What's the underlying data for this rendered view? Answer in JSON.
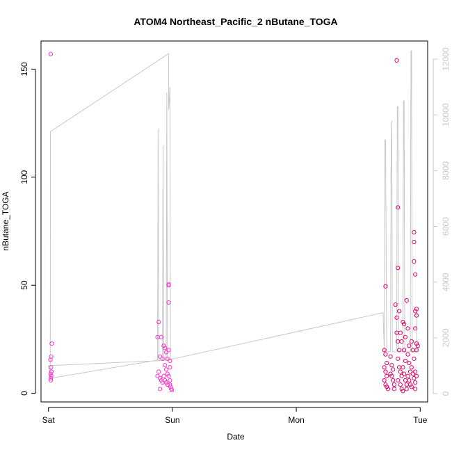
{
  "chart_data": {
    "type": "scatter",
    "title": "ATOM4 Northeast_Pacific_2 nButane_TOGA",
    "xlabel": "Date",
    "ylabel": "nButane_TOGA",
    "x_ticks": [
      {
        "label": "Sat",
        "t": 0
      },
      {
        "label": "Sun",
        "t": 1
      },
      {
        "label": "Mon",
        "t": 2
      },
      {
        "label": "Tue",
        "t": 3
      }
    ],
    "xlim": [
      -0.06,
      3.06
    ],
    "ylim": [
      -4,
      163
    ],
    "y_ticks": [
      0,
      50,
      100,
      150
    ],
    "y2lim": [
      -300,
      12650
    ],
    "y2_ticks": [
      0,
      2000,
      4000,
      6000,
      8000,
      10000,
      12000
    ],
    "grid": false,
    "colors": {
      "series_dark": "#e0006a",
      "series_light": "#ff33cc",
      "altitude_line": "#c8c8c8"
    },
    "series": [
      {
        "axis": "left",
        "style": "points",
        "points": [
          [
            0.018,
            157
          ],
          [
            0.026,
            23
          ],
          [
            0.022,
            17
          ],
          [
            0.016,
            15.5
          ],
          [
            0.02,
            12
          ],
          [
            0.024,
            10
          ],
          [
            0.018,
            9
          ],
          [
            0.022,
            8
          ],
          [
            0.02,
            7
          ],
          [
            0.019,
            6
          ],
          [
            0.88,
            26
          ],
          [
            0.89,
            33
          ],
          [
            0.9,
            17
          ],
          [
            0.91,
            26
          ],
          [
            0.92,
            16
          ],
          [
            0.89,
            10
          ],
          [
            0.88,
            8
          ],
          [
            0.9,
            7
          ],
          [
            0.91,
            6
          ],
          [
            0.92,
            5
          ],
          [
            0.9,
            2
          ],
          [
            0.93,
            22
          ],
          [
            0.94,
            21
          ],
          [
            0.95,
            19
          ],
          [
            0.96,
            16
          ],
          [
            0.94,
            13
          ],
          [
            0.95,
            11
          ],
          [
            0.96,
            9
          ],
          [
            0.93,
            8
          ],
          [
            0.94,
            6
          ],
          [
            0.95,
            5
          ],
          [
            0.96,
            4
          ],
          [
            0.97,
            50.5
          ],
          [
            0.97,
            50
          ],
          [
            0.97,
            42
          ],
          [
            0.97,
            20
          ],
          [
            0.98,
            15
          ],
          [
            0.98,
            12
          ],
          [
            0.97,
            8
          ],
          [
            0.98,
            6
          ],
          [
            0.98,
            4
          ],
          [
            0.985,
            3
          ],
          [
            0.99,
            2
          ],
          [
            0.995,
            1.5
          ],
          [
            2.72,
            49.5
          ],
          [
            2.71,
            20
          ],
          [
            2.72,
            18
          ],
          [
            2.73,
            14
          ],
          [
            2.71,
            12
          ],
          [
            2.72,
            10
          ],
          [
            2.73,
            8
          ],
          [
            2.71,
            6
          ],
          [
            2.72,
            4
          ],
          [
            2.73,
            3
          ],
          [
            2.74,
            2
          ],
          [
            2.76,
            17
          ],
          [
            2.77,
            13
          ],
          [
            2.78,
            11
          ],
          [
            2.76,
            9
          ],
          [
            2.77,
            8
          ],
          [
            2.78,
            6
          ],
          [
            2.79,
            4
          ],
          [
            2.79,
            2
          ],
          [
            2.8,
            41
          ],
          [
            2.81,
            35
          ],
          [
            2.81,
            28
          ],
          [
            2.82,
            24
          ],
          [
            2.83,
            20
          ],
          [
            2.82,
            16
          ],
          [
            2.83,
            12
          ],
          [
            2.84,
            10
          ],
          [
            2.85,
            8
          ],
          [
            2.82,
            6
          ],
          [
            2.84,
            4
          ],
          [
            2.85,
            2
          ],
          [
            2.86,
            1
          ],
          [
            2.81,
            154
          ],
          [
            2.82,
            86
          ],
          [
            2.82,
            58
          ],
          [
            2.83,
            38
          ],
          [
            2.84,
            28
          ],
          [
            2.85,
            24
          ],
          [
            2.86,
            33
          ],
          [
            2.87,
            32
          ],
          [
            2.88,
            26
          ],
          [
            2.87,
            20
          ],
          [
            2.88,
            15
          ],
          [
            2.86,
            12
          ],
          [
            2.87,
            9
          ],
          [
            2.88,
            6
          ],
          [
            2.89,
            4
          ],
          [
            2.89,
            2
          ],
          [
            2.89,
            43
          ],
          [
            2.9,
            30
          ],
          [
            2.91,
            22
          ],
          [
            2.9,
            18
          ],
          [
            2.91,
            14
          ],
          [
            2.92,
            10
          ],
          [
            2.9,
            8
          ],
          [
            2.91,
            6
          ],
          [
            2.92,
            4
          ],
          [
            2.93,
            3
          ],
          [
            2.93,
            24
          ],
          [
            2.94,
            20
          ],
          [
            2.95,
            16
          ],
          [
            2.93,
            12
          ],
          [
            2.94,
            9
          ],
          [
            2.95,
            7
          ],
          [
            2.96,
            5
          ],
          [
            2.96,
            2
          ],
          [
            2.95,
            74.5
          ],
          [
            2.95,
            70
          ],
          [
            2.95,
            61
          ],
          [
            2.96,
            55
          ],
          [
            2.96,
            38
          ],
          [
            2.97,
            39
          ],
          [
            2.97,
            36
          ],
          [
            2.96,
            30
          ],
          [
            2.97,
            23
          ],
          [
            2.97,
            20
          ],
          [
            2.98,
            22
          ],
          [
            2.96,
            10
          ],
          [
            2.97,
            8
          ]
        ]
      },
      {
        "axis": "right",
        "style": "line",
        "points": [
          [
            0.014,
            550
          ],
          [
            0.015,
            2800
          ],
          [
            0.016,
            9400
          ],
          [
            0.97,
            12200
          ],
          [
            0.97,
            10200
          ],
          [
            0.975,
            10500
          ],
          [
            0.98,
            11000
          ],
          [
            0.985,
            1200
          ],
          [
            0.0,
            1000
          ],
          [
            0.02,
            550
          ],
          [
            0.88,
            1200
          ],
          [
            0.885,
            9500
          ],
          [
            0.89,
            1200
          ],
          [
            0.92,
            1200
          ],
          [
            0.925,
            8900
          ],
          [
            0.93,
            1200
          ],
          [
            0.95,
            1200
          ],
          [
            0.955,
            10800
          ],
          [
            0.96,
            1200
          ],
          [
            2.7,
            2900
          ],
          [
            2.71,
            1500
          ],
          [
            2.715,
            9100
          ],
          [
            2.72,
            9100
          ],
          [
            2.73,
            1500
          ],
          [
            2.76,
            1500
          ],
          [
            2.765,
            8800
          ],
          [
            2.77,
            9800
          ],
          [
            2.775,
            1500
          ],
          [
            2.81,
            1500
          ],
          [
            2.815,
            10300
          ],
          [
            2.82,
            10300
          ],
          [
            2.825,
            1500
          ],
          [
            2.86,
            1500
          ],
          [
            2.865,
            10500
          ],
          [
            2.87,
            10500
          ],
          [
            2.875,
            1500
          ],
          [
            2.92,
            1500
          ],
          [
            2.925,
            12300
          ],
          [
            2.93,
            12300
          ],
          [
            2.935,
            1500
          ],
          [
            2.97,
            1500
          ],
          [
            2.975,
            3000
          ]
        ]
      }
    ]
  }
}
